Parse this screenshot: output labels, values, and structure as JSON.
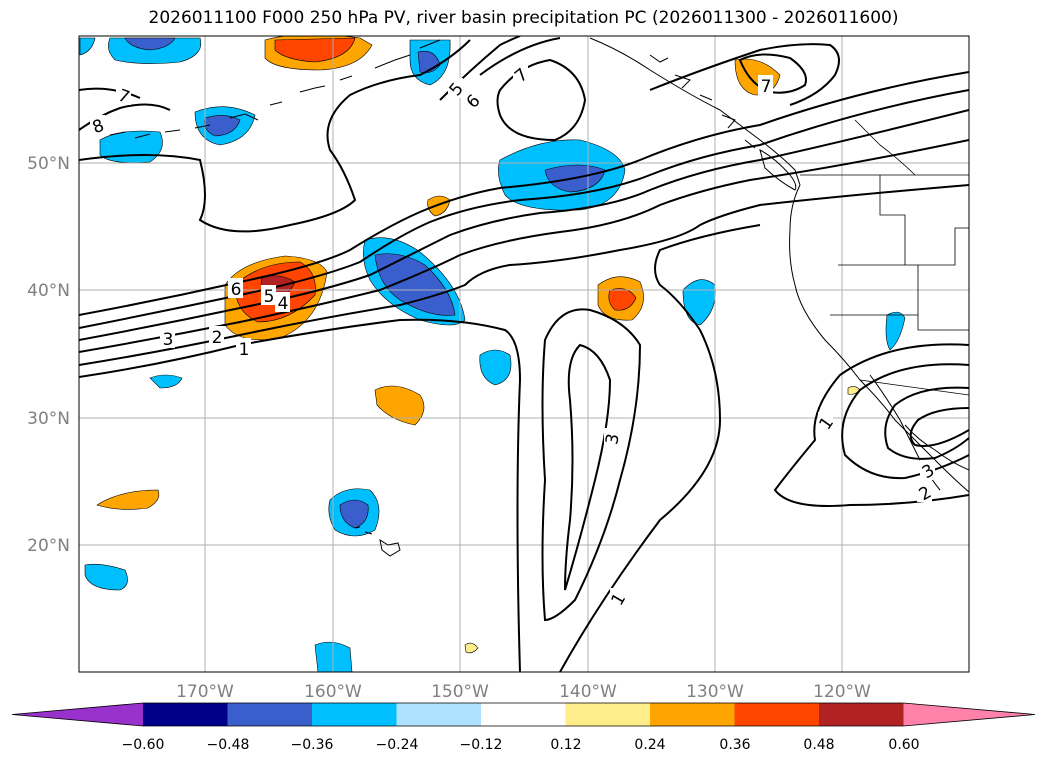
{
  "title": "2026011100 F000 250 hPa PV, river basin precipitation PC (2026011300 - 2026011600)",
  "map": {
    "lat_labels": [
      "50°N",
      "40°N",
      "30°N",
      "20°N"
    ],
    "lon_labels": [
      "170°W",
      "160°W",
      "150°W",
      "140°W",
      "130°W",
      "120°W"
    ],
    "contour_labels": [
      "1",
      "2",
      "3",
      "4",
      "5",
      "6",
      "7",
      "8",
      "1",
      "3",
      "1",
      "2",
      "3",
      "5",
      "6",
      "7",
      "7"
    ]
  },
  "colorbar": {
    "ticks": [
      "−0.60",
      "−0.48",
      "−0.36",
      "−0.24",
      "−0.12",
      "0.12",
      "0.24",
      "0.36",
      "0.48",
      "0.60"
    ],
    "colors": [
      "#9932cc",
      "#00008b",
      "#3a5fcd",
      "#00bfff",
      "#b0e2ff",
      "#ffffff",
      "#ffec8b",
      "#ffa500",
      "#ff4500",
      "#b22222",
      "#ff82ab"
    ]
  }
}
